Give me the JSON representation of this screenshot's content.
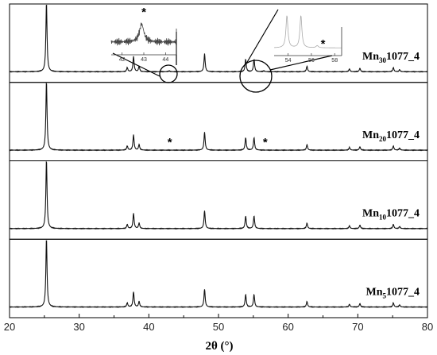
{
  "chart_data": {
    "type": "line",
    "xlabel": "2θ (°)",
    "xlim": [
      20,
      80
    ],
    "x_ticks": [
      "20",
      "30",
      "40",
      "50",
      "60",
      "70",
      "80"
    ],
    "y_ticks_shown": false,
    "grid": false,
    "legend": "none",
    "peaks_2theta": [
      25.3,
      36.9,
      37.8,
      38.6,
      48.0,
      53.9,
      55.1,
      62.7,
      68.8,
      70.3,
      75.1,
      76.0
    ],
    "peak_heights_relative": [
      1.0,
      0.06,
      0.22,
      0.08,
      0.26,
      0.18,
      0.18,
      0.08,
      0.04,
      0.05,
      0.06,
      0.03
    ],
    "series": [
      {
        "name_main": "Mn",
        "name_sub": "30",
        "name_rest": "1077_4",
        "impurity_peaks_2theta": [
          42.9,
          56.5
        ]
      },
      {
        "name_main": "Mn",
        "name_sub": "20",
        "name_rest": "1077_4",
        "impurity_peaks_2theta": []
      },
      {
        "name_main": "Mn",
        "name_sub": "10",
        "name_rest": "1077_4",
        "impurity_peaks_2theta": []
      },
      {
        "name_main": "Mn",
        "name_sub": "5",
        "name_rest": "1077_4",
        "impurity_peaks_2theta": []
      }
    ],
    "annotations": [
      {
        "mark": "*",
        "x": 43.0
      },
      {
        "mark": "*",
        "x": 56.7
      }
    ],
    "insets": [
      {
        "zoom_of_series": 0,
        "xlim": [
          41.5,
          44.5
        ],
        "x_ticks": [
          "42",
          "43",
          "44"
        ],
        "star_x": 43.0
      },
      {
        "zoom_of_series": 0,
        "xlim": [
          52.8,
          58.6
        ],
        "x_ticks": [
          "54",
          "56",
          "58"
        ],
        "star_x": 57.0
      }
    ]
  }
}
